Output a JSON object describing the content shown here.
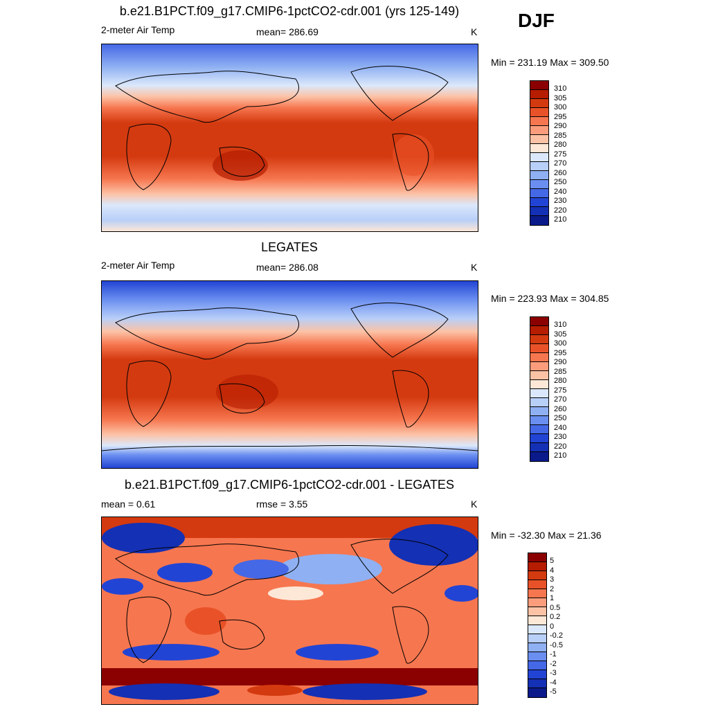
{
  "season": "DJF",
  "colors": {
    "temp_scale": [
      "#8b0000",
      "#b51c00",
      "#d43a10",
      "#e95228",
      "#f6764f",
      "#fb9d7c",
      "#fcc2a6",
      "#fde7d6",
      "#dbe8fb",
      "#b8cff8",
      "#8fb0f2",
      "#6b8ff0",
      "#4568e6",
      "#2244d4",
      "#1430b4",
      "#0a1a8a"
    ],
    "diff_scale": [
      "#8b0000",
      "#b51c00",
      "#d43a10",
      "#e95228",
      "#f6764f",
      "#fb9d7c",
      "#fcc2a6",
      "#fde7d6",
      "#dbe8fb",
      "#b8cff8",
      "#8fb0f2",
      "#6b8ff0",
      "#4568e6",
      "#2244d4",
      "#1430b4",
      "#0a1a8a"
    ]
  },
  "panels": {
    "model": {
      "title": "b.e21.B1PCT.f09_g17.CMIP6-1pctCO2-cdr.001 (yrs 125-149)",
      "left": "2-meter Air Temp",
      "center": "mean= 286.69",
      "right": "K",
      "minmax": "Min = 231.19 Max = 309.50",
      "scale_labels": [
        "310",
        "305",
        "300",
        "295",
        "290",
        "285",
        "280",
        "275",
        "270",
        "260",
        "250",
        "240",
        "230",
        "220",
        "210"
      ]
    },
    "obs": {
      "title": "LEGATES",
      "left": "2-meter Air Temp",
      "center": "mean= 286.08",
      "right": "K",
      "minmax": "Min = 223.93 Max = 304.85",
      "scale_labels": [
        "310",
        "305",
        "300",
        "295",
        "290",
        "285",
        "280",
        "275",
        "270",
        "260",
        "250",
        "240",
        "230",
        "220",
        "210"
      ]
    },
    "diff": {
      "title": "b.e21.B1PCT.f09_g17.CMIP6-1pctCO2-cdr.001 - LEGATES",
      "left": "mean =   0.61",
      "center": "rmse =   3.55",
      "right": "K",
      "minmax": "Min = -32.30 Max =  21.36",
      "scale_labels": [
        "5",
        "4",
        "3",
        "2",
        "1",
        "0.5",
        "0.2",
        "0",
        "-0.2",
        "-0.5",
        "-1",
        "-2",
        "-3",
        "-4",
        "-5"
      ]
    }
  }
}
